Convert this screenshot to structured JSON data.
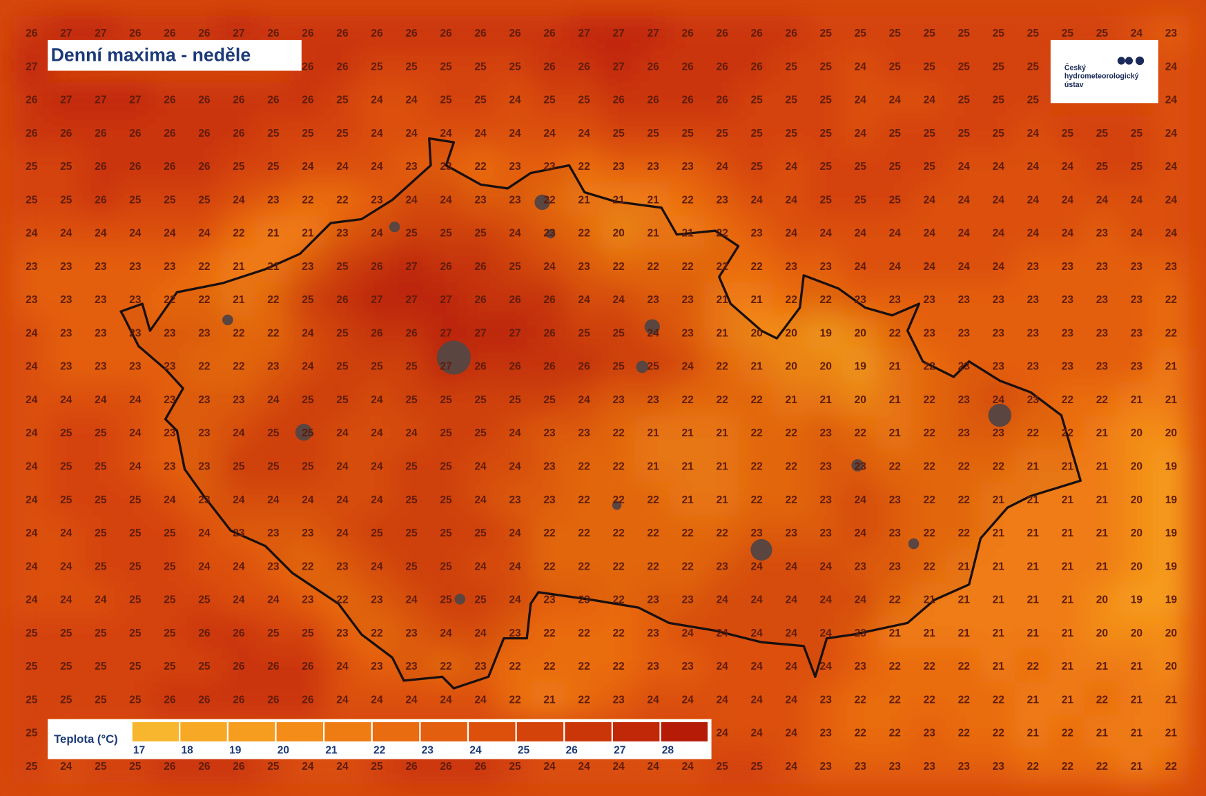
{
  "header": {
    "title": "Denní maxima - neděle"
  },
  "logo": {
    "lines": [
      "Český",
      "hydrometeorologický",
      "ústav"
    ]
  },
  "legend": {
    "label": "Teplota (°C)",
    "items": [
      {
        "value": 17,
        "color": "#f8b62e"
      },
      {
        "value": 18,
        "color": "#f7a925"
      },
      {
        "value": 19,
        "color": "#f69c1e"
      },
      {
        "value": 20,
        "color": "#f38c18"
      },
      {
        "value": 21,
        "color": "#ef7c13"
      },
      {
        "value": 22,
        "color": "#e96c10"
      },
      {
        "value": 23,
        "color": "#e35e0e"
      },
      {
        "value": 24,
        "color": "#dc500c"
      },
      {
        "value": 25,
        "color": "#d4430a"
      },
      {
        "value": 26,
        "color": "#cb3609"
      },
      {
        "value": 27,
        "color": "#c12807"
      },
      {
        "value": 28,
        "color": "#b51b06"
      }
    ]
  },
  "grid": {
    "rows": [
      [
        26,
        27,
        27,
        26,
        26,
        26,
        27,
        26,
        26,
        26,
        26,
        26,
        26,
        26,
        26,
        26,
        27,
        27,
        27,
        26,
        26,
        26,
        26,
        25,
        25,
        25,
        25,
        25,
        25,
        25,
        25,
        25,
        24,
        23
      ],
      [
        27,
        null,
        null,
        null,
        null,
        null,
        null,
        null,
        26,
        26,
        25,
        25,
        25,
        25,
        25,
        26,
        26,
        27,
        26,
        26,
        26,
        26,
        25,
        25,
        24,
        25,
        25,
        25,
        25,
        25,
        null,
        null,
        null,
        24
      ],
      [
        26,
        27,
        27,
        27,
        26,
        26,
        26,
        26,
        26,
        25,
        24,
        24,
        25,
        25,
        24,
        25,
        25,
        26,
        26,
        26,
        26,
        25,
        25,
        25,
        24,
        24,
        24,
        25,
        25,
        25,
        null,
        null,
        null,
        24
      ],
      [
        26,
        26,
        26,
        26,
        26,
        26,
        26,
        25,
        25,
        25,
        24,
        24,
        24,
        24,
        24,
        24,
        24,
        25,
        25,
        25,
        25,
        25,
        25,
        25,
        24,
        25,
        25,
        25,
        25,
        24,
        25,
        25,
        25,
        24
      ],
      [
        25,
        25,
        26,
        26,
        26,
        26,
        25,
        25,
        24,
        24,
        24,
        23,
        23,
        22,
        23,
        23,
        22,
        23,
        23,
        23,
        24,
        25,
        24,
        25,
        25,
        25,
        25,
        24,
        24,
        24,
        24,
        25,
        25,
        24
      ],
      [
        25,
        25,
        26,
        25,
        25,
        25,
        24,
        23,
        22,
        22,
        23,
        24,
        24,
        23,
        23,
        22,
        21,
        21,
        21,
        22,
        23,
        24,
        24,
        25,
        25,
        25,
        24,
        24,
        24,
        24,
        24,
        24,
        24,
        24
      ],
      [
        24,
        24,
        24,
        24,
        24,
        24,
        22,
        21,
        21,
        23,
        24,
        25,
        25,
        25,
        24,
        23,
        22,
        20,
        21,
        21,
        22,
        23,
        24,
        24,
        24,
        24,
        24,
        24,
        24,
        24,
        24,
        23,
        24,
        24
      ],
      [
        23,
        23,
        23,
        23,
        23,
        22,
        21,
        21,
        23,
        25,
        26,
        27,
        26,
        26,
        25,
        24,
        23,
        22,
        22,
        22,
        22,
        22,
        23,
        23,
        24,
        24,
        24,
        24,
        24,
        23,
        23,
        23,
        23,
        23
      ],
      [
        23,
        23,
        23,
        23,
        22,
        22,
        21,
        22,
        25,
        26,
        27,
        27,
        27,
        26,
        26,
        26,
        24,
        24,
        23,
        23,
        21,
        21,
        22,
        22,
        23,
        23,
        23,
        23,
        23,
        23,
        23,
        23,
        23,
        22
      ],
      [
        24,
        23,
        23,
        23,
        23,
        23,
        22,
        22,
        24,
        25,
        26,
        26,
        27,
        27,
        27,
        26,
        25,
        25,
        24,
        23,
        21,
        20,
        20,
        19,
        20,
        22,
        23,
        23,
        23,
        23,
        23,
        23,
        23,
        22
      ],
      [
        24,
        23,
        23,
        23,
        23,
        22,
        22,
        23,
        24,
        25,
        25,
        25,
        27,
        26,
        26,
        26,
        26,
        25,
        25,
        24,
        22,
        21,
        20,
        20,
        19,
        21,
        22,
        23,
        23,
        23,
        23,
        23,
        23,
        21
      ],
      [
        24,
        24,
        24,
        24,
        23,
        23,
        23,
        24,
        25,
        25,
        24,
        25,
        25,
        25,
        25,
        25,
        24,
        23,
        23,
        22,
        22,
        22,
        21,
        21,
        20,
        21,
        22,
        23,
        24,
        23,
        22,
        22,
        21,
        21
      ],
      [
        24,
        25,
        25,
        24,
        23,
        23,
        24,
        25,
        25,
        24,
        24,
        24,
        25,
        25,
        24,
        23,
        23,
        22,
        21,
        21,
        21,
        22,
        22,
        23,
        22,
        21,
        22,
        23,
        23,
        22,
        22,
        21,
        20,
        20
      ],
      [
        24,
        25,
        25,
        24,
        23,
        23,
        25,
        25,
        25,
        24,
        24,
        25,
        25,
        24,
        24,
        23,
        22,
        22,
        21,
        21,
        21,
        22,
        22,
        23,
        23,
        22,
        22,
        22,
        22,
        21,
        21,
        21,
        20,
        19
      ],
      [
        24,
        25,
        25,
        25,
        24,
        23,
        24,
        24,
        24,
        24,
        24,
        25,
        25,
        24,
        23,
        23,
        22,
        22,
        22,
        21,
        21,
        22,
        22,
        23,
        24,
        23,
        22,
        22,
        21,
        21,
        21,
        21,
        20,
        19
      ],
      [
        24,
        24,
        25,
        25,
        25,
        24,
        23,
        23,
        23,
        24,
        25,
        25,
        25,
        25,
        24,
        22,
        22,
        22,
        22,
        22,
        22,
        23,
        23,
        23,
        24,
        23,
        22,
        22,
        21,
        21,
        21,
        21,
        20,
        19
      ],
      [
        24,
        24,
        25,
        25,
        25,
        24,
        24,
        23,
        22,
        23,
        24,
        25,
        25,
        24,
        24,
        22,
        22,
        22,
        22,
        22,
        23,
        24,
        24,
        24,
        23,
        23,
        22,
        21,
        21,
        21,
        21,
        21,
        20,
        19
      ],
      [
        24,
        24,
        24,
        25,
        25,
        25,
        24,
        24,
        23,
        22,
        23,
        24,
        25,
        25,
        24,
        23,
        23,
        22,
        23,
        23,
        24,
        24,
        24,
        24,
        24,
        22,
        21,
        21,
        21,
        21,
        21,
        20,
        19,
        19
      ],
      [
        25,
        25,
        25,
        25,
        25,
        26,
        26,
        25,
        25,
        23,
        22,
        23,
        24,
        24,
        23,
        22,
        22,
        22,
        23,
        24,
        24,
        24,
        24,
        24,
        23,
        21,
        21,
        21,
        21,
        21,
        21,
        20,
        20,
        20
      ],
      [
        25,
        25,
        25,
        25,
        25,
        25,
        26,
        26,
        26,
        24,
        23,
        23,
        22,
        23,
        22,
        22,
        22,
        22,
        23,
        23,
        24,
        24,
        24,
        24,
        23,
        22,
        22,
        22,
        21,
        22,
        21,
        21,
        21,
        20
      ],
      [
        25,
        25,
        25,
        25,
        26,
        26,
        26,
        26,
        26,
        24,
        24,
        24,
        24,
        24,
        22,
        21,
        22,
        23,
        24,
        24,
        24,
        24,
        24,
        23,
        22,
        22,
        22,
        22,
        22,
        21,
        21,
        22,
        21,
        21
      ],
      [
        25,
        null,
        null,
        null,
        null,
        null,
        null,
        null,
        null,
        null,
        null,
        null,
        null,
        null,
        null,
        null,
        null,
        null,
        null,
        null,
        24,
        24,
        24,
        23,
        22,
        22,
        23,
        22,
        22,
        21,
        22,
        21,
        21,
        21
      ],
      [
        25,
        24,
        25,
        25,
        26,
        26,
        26,
        25,
        24,
        24,
        25,
        26,
        26,
        26,
        25,
        24,
        24,
        24,
        24,
        24,
        25,
        25,
        24,
        23,
        23,
        23,
        23,
        23,
        23,
        22,
        22,
        22,
        21,
        22
      ]
    ]
  }
}
